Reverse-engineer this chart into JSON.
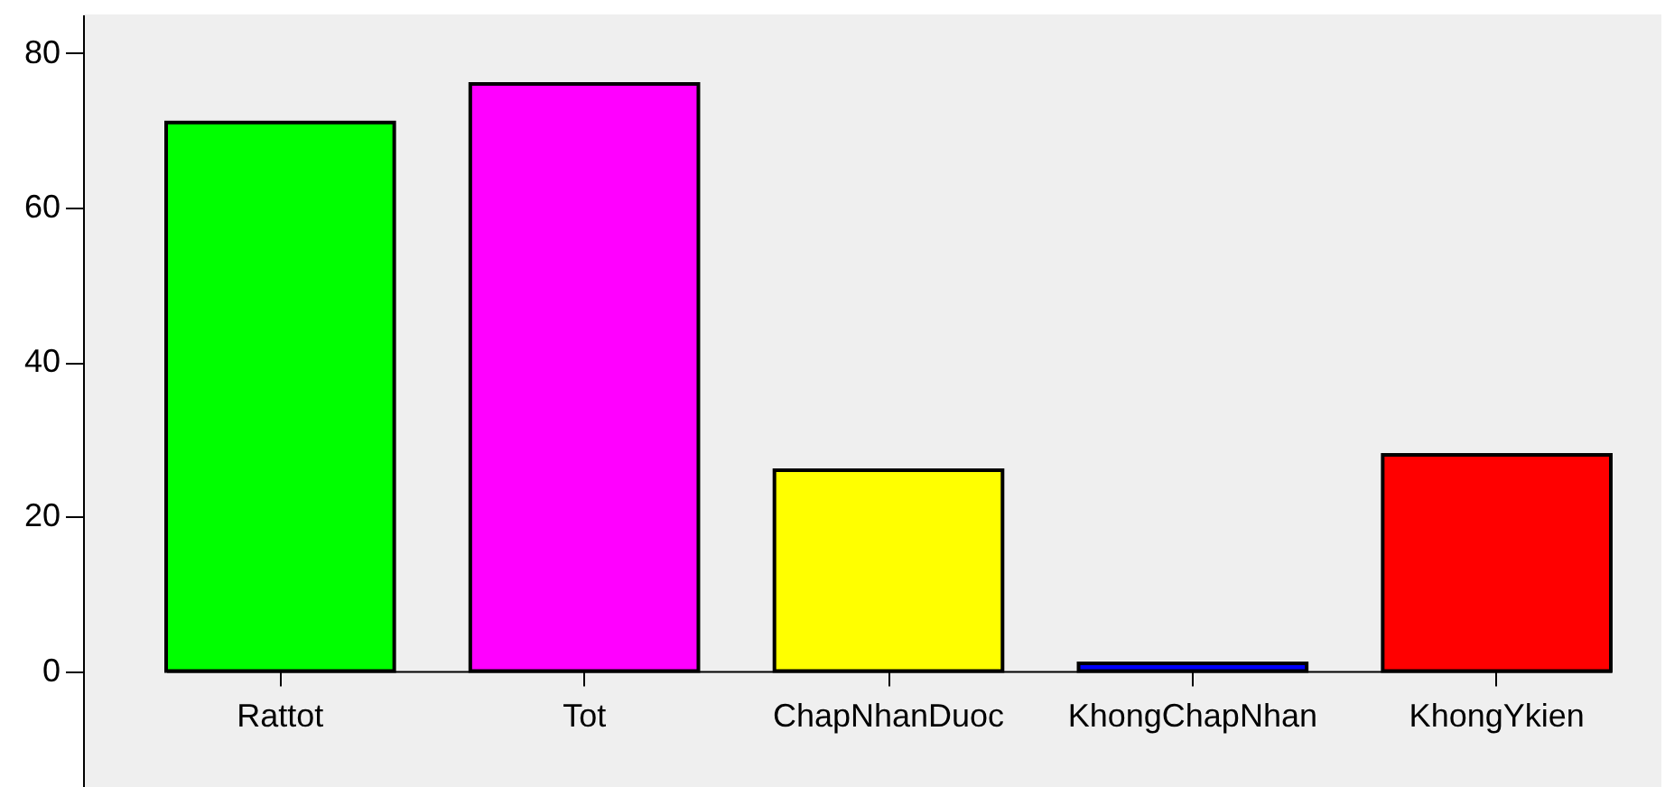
{
  "chart_data": {
    "type": "bar",
    "categories": [
      "Rattot",
      "Tot",
      "ChapNhanDuoc",
      "KhongChapNhan",
      "KhongYkien"
    ],
    "values": [
      71,
      76,
      26,
      1,
      28
    ],
    "colors": [
      "#00ff00",
      "#ff00ff",
      "#ffff00",
      "#0000ff",
      "#ff0000"
    ],
    "ylim": [
      -15,
      85
    ],
    "yticks": [
      0,
      20,
      40,
      60,
      80
    ],
    "grid": false
  }
}
